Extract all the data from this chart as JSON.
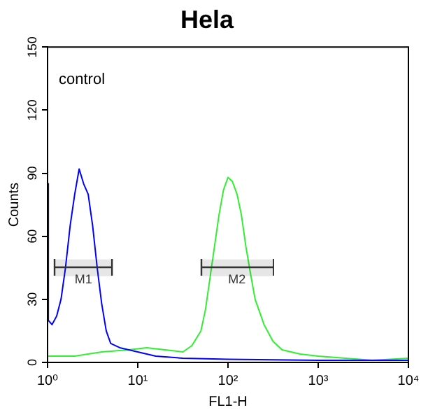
{
  "chart_data": {
    "type": "line",
    "title": "Hela",
    "xlabel": "FL1-H",
    "ylabel": "Counts",
    "log": "x",
    "grid": false,
    "legend": false,
    "marker": "none",
    "xlim": [
      1,
      10000
    ],
    "xticks": [
      {
        "value": 1,
        "label": "10⁰"
      },
      {
        "value": 10,
        "label": "10¹"
      },
      {
        "value": 100,
        "label": "10²"
      },
      {
        "value": 1000,
        "label": "10³"
      },
      {
        "value": 10000,
        "label": "10⁴"
      }
    ],
    "ylim": [
      0,
      150
    ],
    "yticks": [
      0,
      30,
      60,
      90,
      120,
      150
    ],
    "annotations": [
      "control"
    ],
    "bands": [
      {
        "axis": "x",
        "from": 1.2,
        "to": 5.2,
        "label": "M1",
        "color": "#333333"
      },
      {
        "axis": "x",
        "from": 50,
        "to": 316,
        "label": "M2",
        "color": "#333333"
      }
    ],
    "series": [
      {
        "color": "#0000ff",
        "x": [
          1,
          1.02,
          1.12,
          1.26,
          1.41,
          1.58,
          1.78,
          2.0,
          2.24,
          2.51,
          2.82,
          3.16,
          3.55,
          3.98,
          4.47,
          5.01,
          6.31,
          7.94,
          10,
          15.8,
          31.6,
          100,
          1000,
          10000
        ],
        "values": [
          85,
          20,
          18,
          22,
          30,
          45,
          65,
          80,
          92,
          85,
          80,
          65,
          45,
          28,
          15,
          9,
          7,
          6,
          5,
          3,
          2,
          1.5,
          1,
          1
        ]
      },
      {
        "color": "#33ee33",
        "x": [
          1,
          2,
          3.98,
          7.94,
          12.6,
          20,
          31.6,
          39.8,
          50.1,
          56.2,
          63.1,
          70.8,
          79.4,
          89.1,
          100,
          112,
          126,
          141,
          158,
          178,
          200,
          251,
          316,
          398,
          631,
          1000,
          2000,
          3980,
          10000
        ],
        "values": [
          3,
          3,
          5,
          6,
          7,
          6,
          5,
          8,
          15,
          25,
          40,
          55,
          70,
          82,
          88,
          86,
          80,
          70,
          55,
          42,
          30,
          18,
          10,
          6,
          4,
          3,
          2,
          1,
          2
        ]
      }
    ]
  }
}
